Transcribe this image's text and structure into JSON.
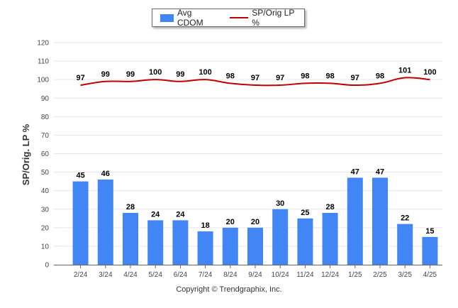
{
  "colors": {
    "bar": "#4285f4",
    "line": "#c00000",
    "grid": "#e6e6e6",
    "axis": "#333333"
  },
  "legend": {
    "bar_label": "Avg CDOM",
    "line_label": "SP/Orig LP %"
  },
  "footer": {
    "copyright": "Copyright © Trendgraphix, Inc."
  },
  "chart_data": {
    "type": "bar",
    "title": "",
    "xlabel": "",
    "ylabel": "SP/Orig. LP %",
    "ylim": [
      0,
      120
    ],
    "yticks": [
      0,
      10,
      20,
      30,
      40,
      50,
      60,
      70,
      80,
      90,
      100,
      110,
      120
    ],
    "grid": true,
    "legend_position": "top-center",
    "categories": [
      "2/24",
      "3/24",
      "4/24",
      "5/24",
      "6/24",
      "7/24",
      "8/24",
      "9/24",
      "10/24",
      "11/24",
      "12/24",
      "1/25",
      "2/25",
      "3/25",
      "4/25"
    ],
    "series": [
      {
        "name": "Avg CDOM",
        "type": "bar",
        "values": [
          45,
          46,
          28,
          24,
          24,
          18,
          20,
          20,
          30,
          25,
          28,
          47,
          47,
          22,
          15
        ]
      },
      {
        "name": "SP/Orig LP %",
        "type": "line",
        "values": [
          97,
          99,
          99,
          100,
          99,
          100,
          98,
          97,
          97,
          98,
          98,
          97,
          98,
          101,
          100
        ]
      }
    ]
  }
}
